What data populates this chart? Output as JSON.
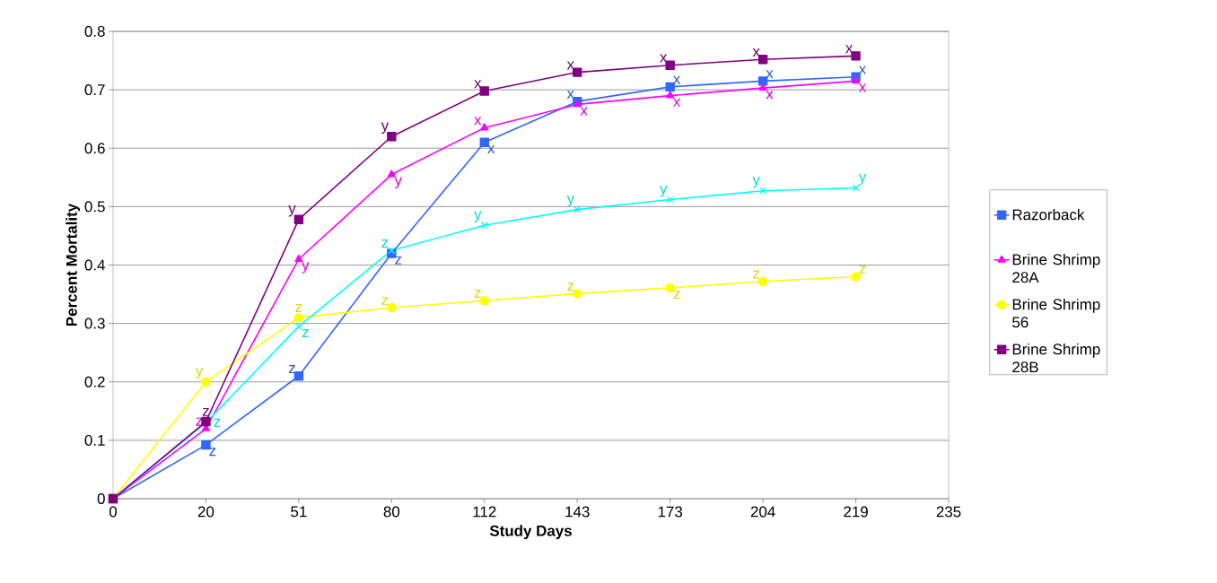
{
  "chart_data": {
    "type": "line",
    "xlabel": "Study Days",
    "ylabel": "Percent Mortality",
    "categories": [
      "0",
      "20",
      "51",
      "80",
      "112",
      "143",
      "173",
      "204",
      "219",
      "235"
    ],
    "ylim": [
      0,
      0.8
    ],
    "yticks": [
      0,
      0.1,
      0.2,
      0.3,
      0.4,
      0.5,
      0.6,
      0.7,
      0.8
    ],
    "grid": "y",
    "legend": "right",
    "series": [
      {
        "name": "Razorback",
        "color": "#3366ff",
        "marker": "square",
        "values": [
          0,
          0.092,
          0.21,
          0.42,
          0.61,
          0.68,
          0.705,
          0.715,
          0.722,
          null
        ],
        "value_labels": [
          null,
          "z",
          "z",
          "z",
          "x",
          "x",
          "x",
          "x",
          "x",
          null
        ]
      },
      {
        "name": "Brine Shrimp 28A",
        "color": "#ff00ff",
        "marker": "triangle",
        "values": [
          0,
          0.12,
          0.41,
          0.555,
          0.635,
          0.675,
          0.69,
          0.703,
          0.715,
          null
        ],
        "value_labels": [
          null,
          "z",
          "y",
          "y",
          "x",
          "x",
          "x",
          "x",
          "x",
          null
        ]
      },
      {
        "name": "Brine Shrimp 56",
        "color": "#ffff00",
        "marker": "circle",
        "values": [
          0,
          0.2,
          0.31,
          0.327,
          0.339,
          0.351,
          0.361,
          0.372,
          0.38,
          null
        ],
        "value_labels": [
          null,
          "y",
          "z",
          "z",
          "z",
          "z",
          "z",
          "z",
          "z",
          null
        ]
      },
      {
        "color": "#00ffff",
        "marker": "cross",
        "values": [
          0,
          0.13,
          0.295,
          0.425,
          0.468,
          0.495,
          0.512,
          0.527,
          0.532,
          null
        ],
        "value_labels": [
          null,
          "z",
          "z",
          "z",
          "y",
          "y",
          "y",
          "y",
          "y",
          null
        ]
      },
      {
        "name": "Brine Shrimp 28B",
        "color": "#800080",
        "marker": "square",
        "values": [
          0,
          0.132,
          0.478,
          0.62,
          0.698,
          0.73,
          0.742,
          0.752,
          0.758,
          null
        ],
        "value_labels": [
          null,
          "z",
          "y",
          "y",
          "x",
          "x",
          "x",
          "x",
          "x",
          null
        ]
      }
    ]
  }
}
